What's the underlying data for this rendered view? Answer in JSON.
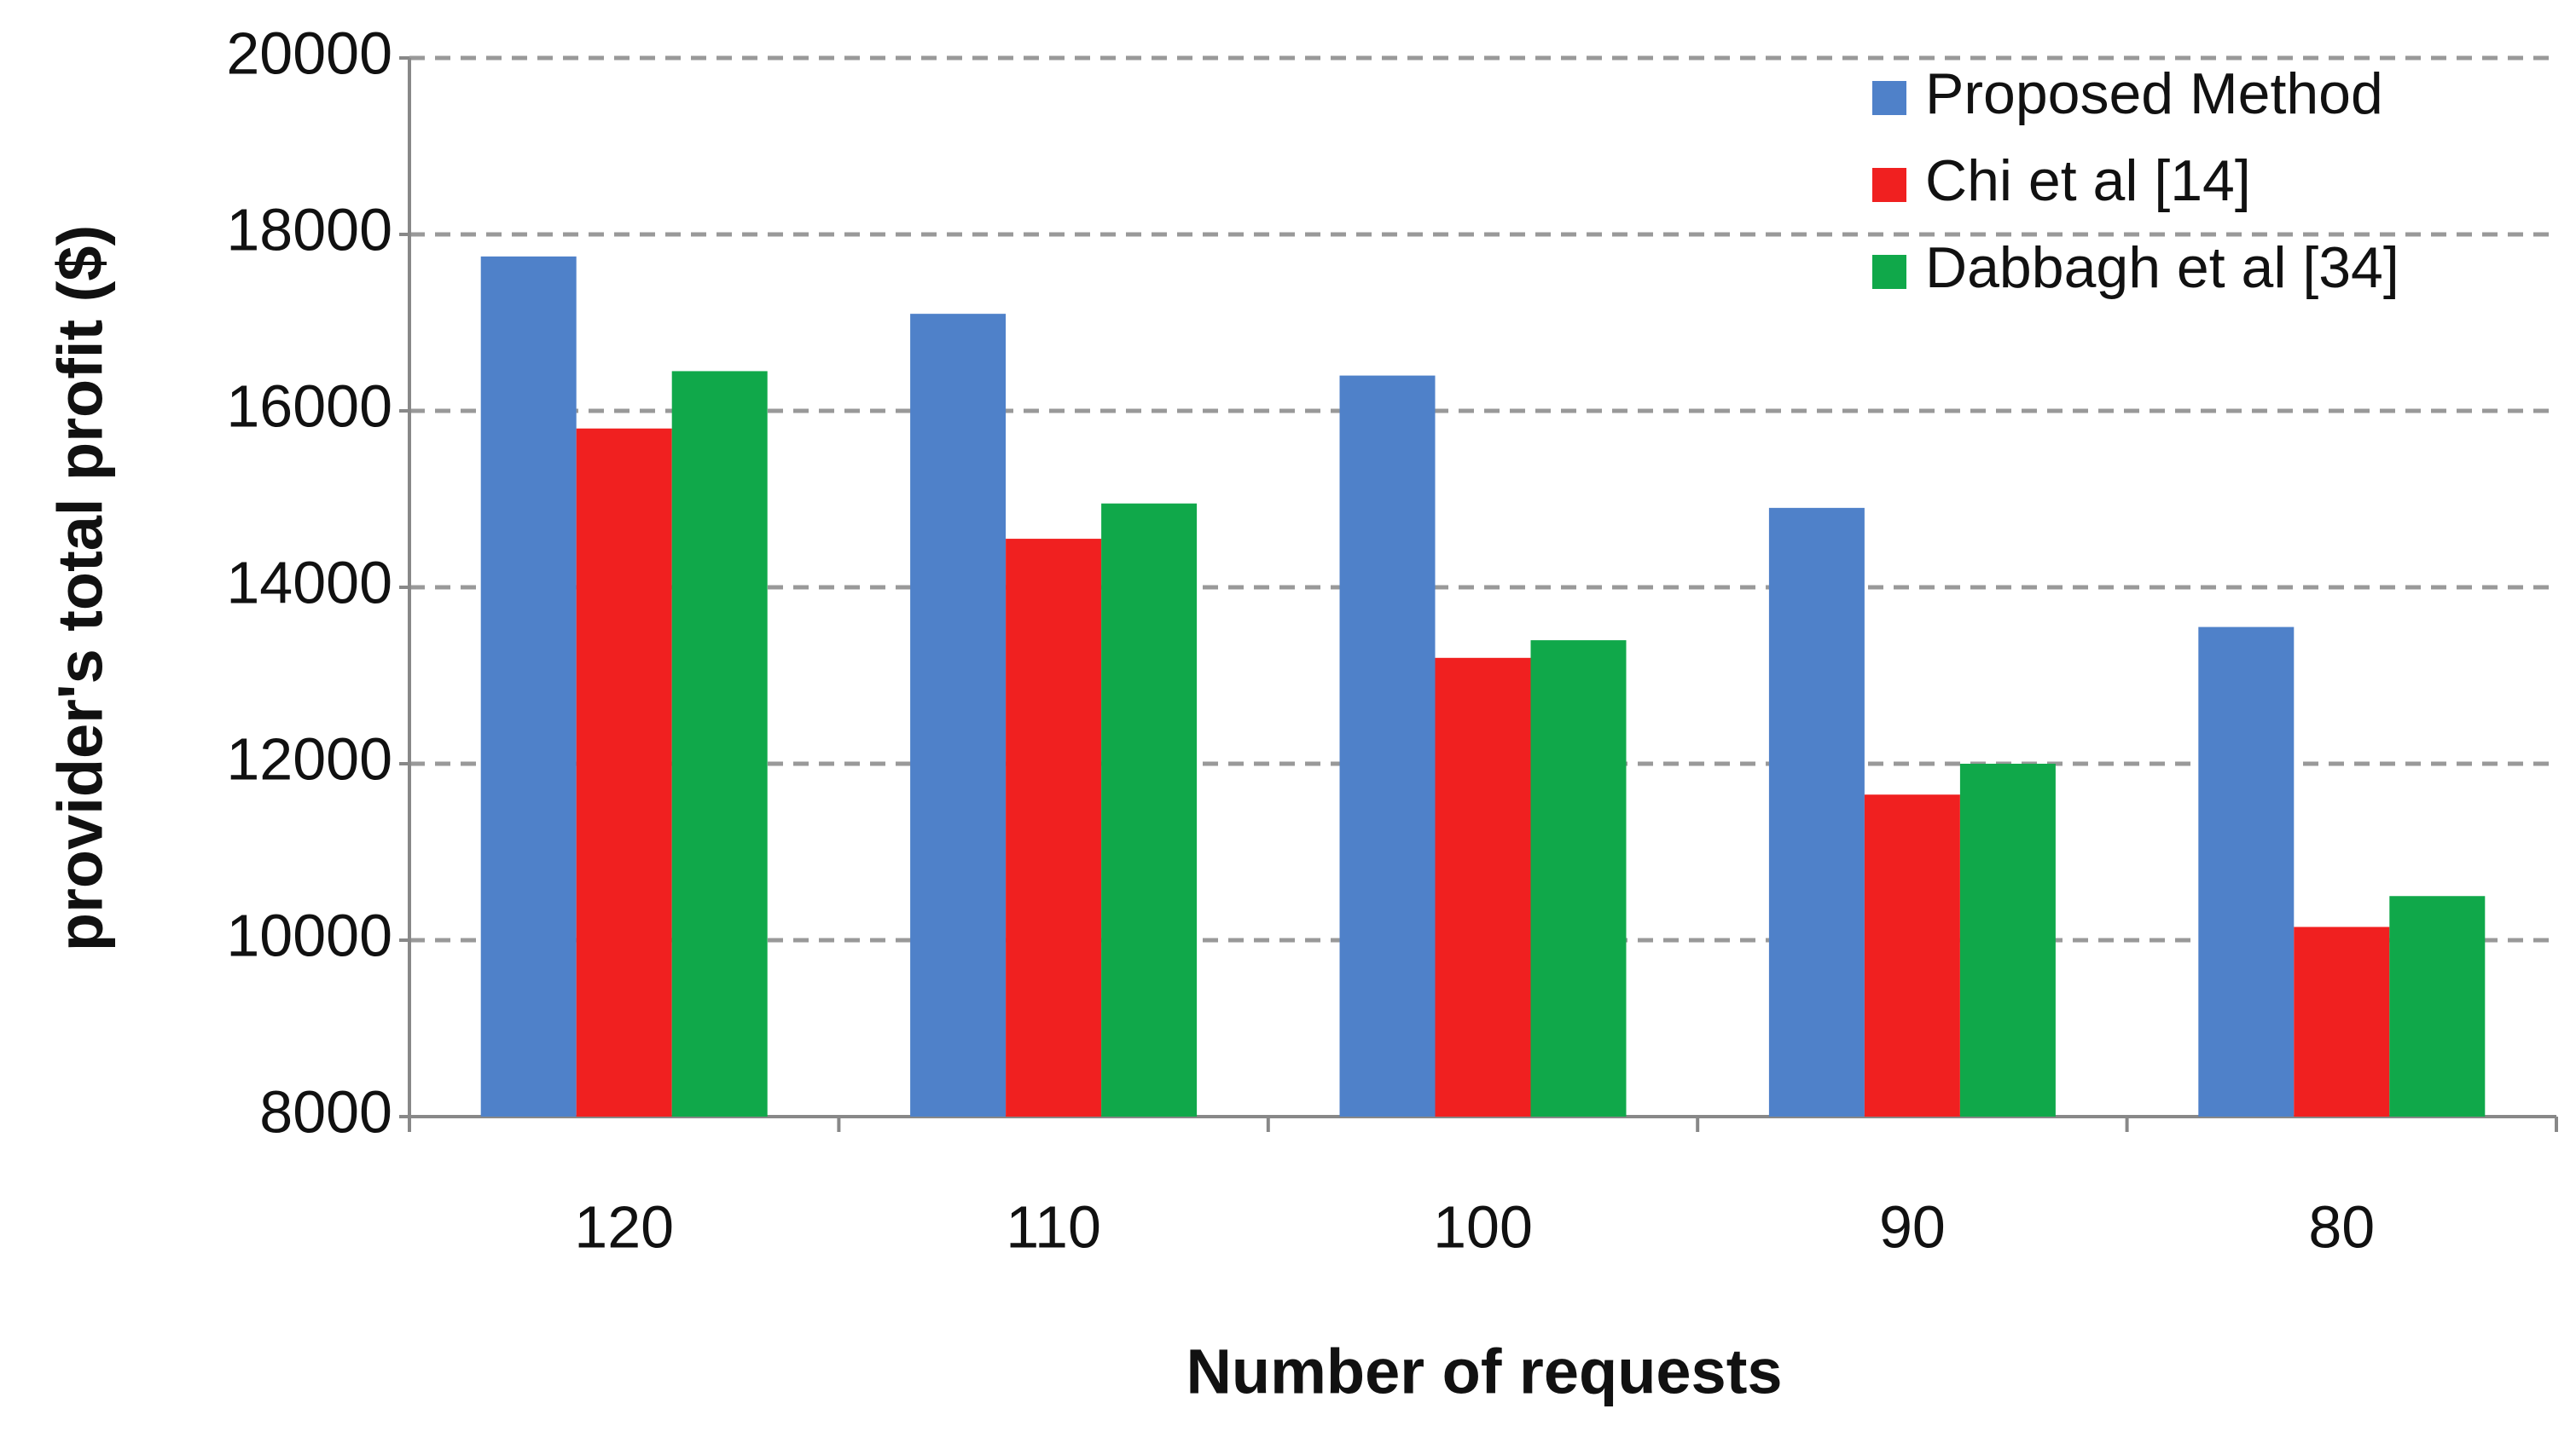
{
  "chart_data": {
    "type": "bar",
    "x_label": "Number of requests",
    "y_label": "provider's total profit ($)",
    "categories": [
      "120",
      "110",
      "100",
      "90",
      "80"
    ],
    "series": [
      {
        "name": "Proposed Method",
        "color": "#4f81c9",
        "values": [
          17750,
          17100,
          16400,
          14900,
          13550
        ]
      },
      {
        "name": "Chi et al [14]",
        "color": "#f02020",
        "values": [
          15800,
          14550,
          13200,
          11650,
          10150
        ]
      },
      {
        "name": "Dabbagh et al [34]",
        "color": "#10a84a",
        "values": [
          16450,
          14950,
          13400,
          12000,
          10500
        ]
      }
    ],
    "ylim": [
      8000,
      20000
    ],
    "yticks": [
      8000,
      10000,
      12000,
      14000,
      16000,
      18000,
      20000
    ],
    "grid": true,
    "legend": "top-right"
  }
}
